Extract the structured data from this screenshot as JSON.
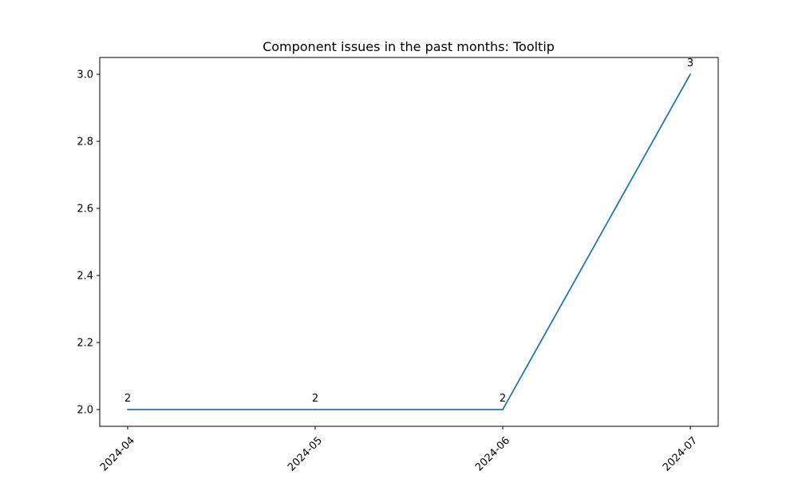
{
  "chart_data": {
    "type": "line",
    "title": "Component issues in the past months: Tooltip",
    "xlabel": "",
    "ylabel": "",
    "x": [
      "2024-04",
      "2024-05",
      "2024-06",
      "2024-07"
    ],
    "series": [
      {
        "values": [
          2,
          2,
          2,
          3
        ],
        "color": "#1f77b4"
      }
    ],
    "data_labels": [
      "2",
      "2",
      "2",
      "3"
    ],
    "ylim": [
      1.95,
      3.05
    ],
    "yticks": [
      2.0,
      2.2,
      2.4,
      2.6,
      2.8,
      3.0
    ],
    "ytick_labels": [
      "2.0",
      "2.2",
      "2.4",
      "2.6",
      "2.8",
      "3.0"
    ],
    "grid": false,
    "legend": false
  }
}
